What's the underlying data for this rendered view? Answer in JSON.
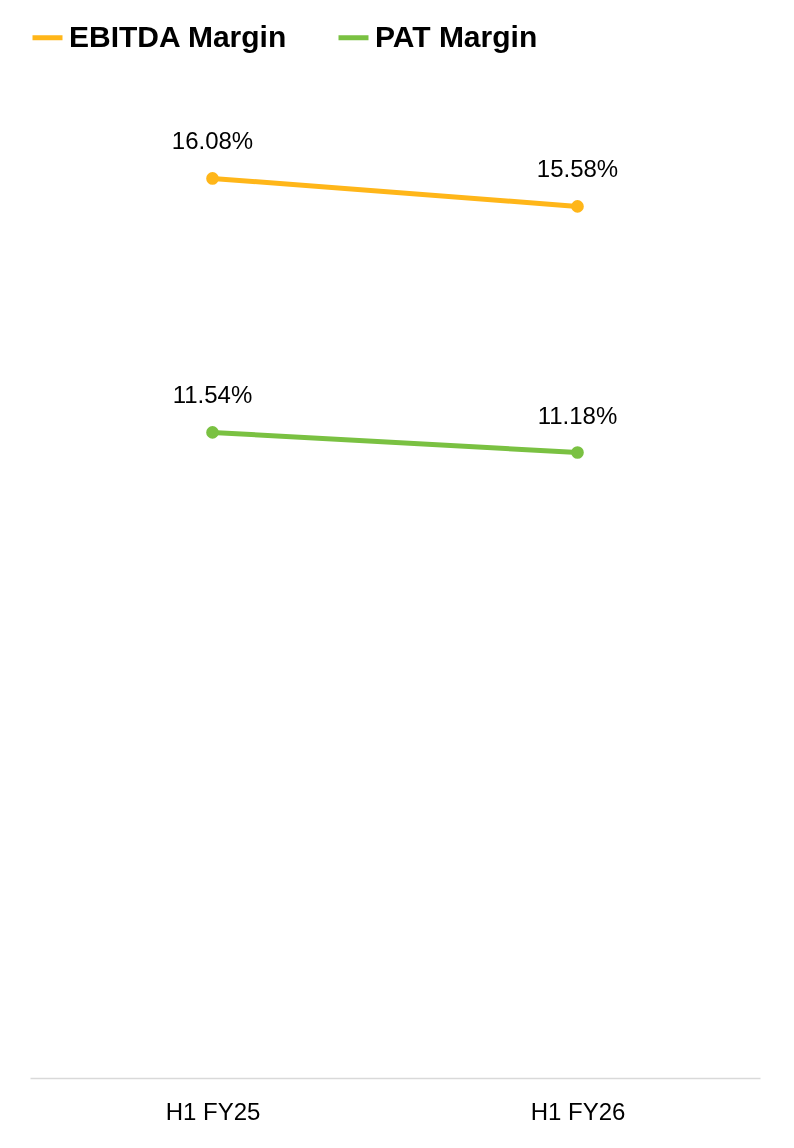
{
  "chart_data": {
    "type": "line",
    "categories": [
      "H1 FY25",
      "H1 FY26"
    ],
    "series": [
      {
        "name": "EBITDA Margin",
        "color": "#ffb619",
        "values": [
          16.08,
          15.58
        ],
        "value_labels": [
          "16.08%",
          "15.58%"
        ]
      },
      {
        "name": "PAT Margin",
        "color": "#7ac142",
        "values": [
          11.54,
          11.18
        ],
        "value_labels": [
          "11.54%",
          "11.18%"
        ]
      }
    ],
    "tick_labels": "x",
    "grid": false,
    "legend": "top",
    "marker": "circle",
    "line_style": "solid"
  }
}
